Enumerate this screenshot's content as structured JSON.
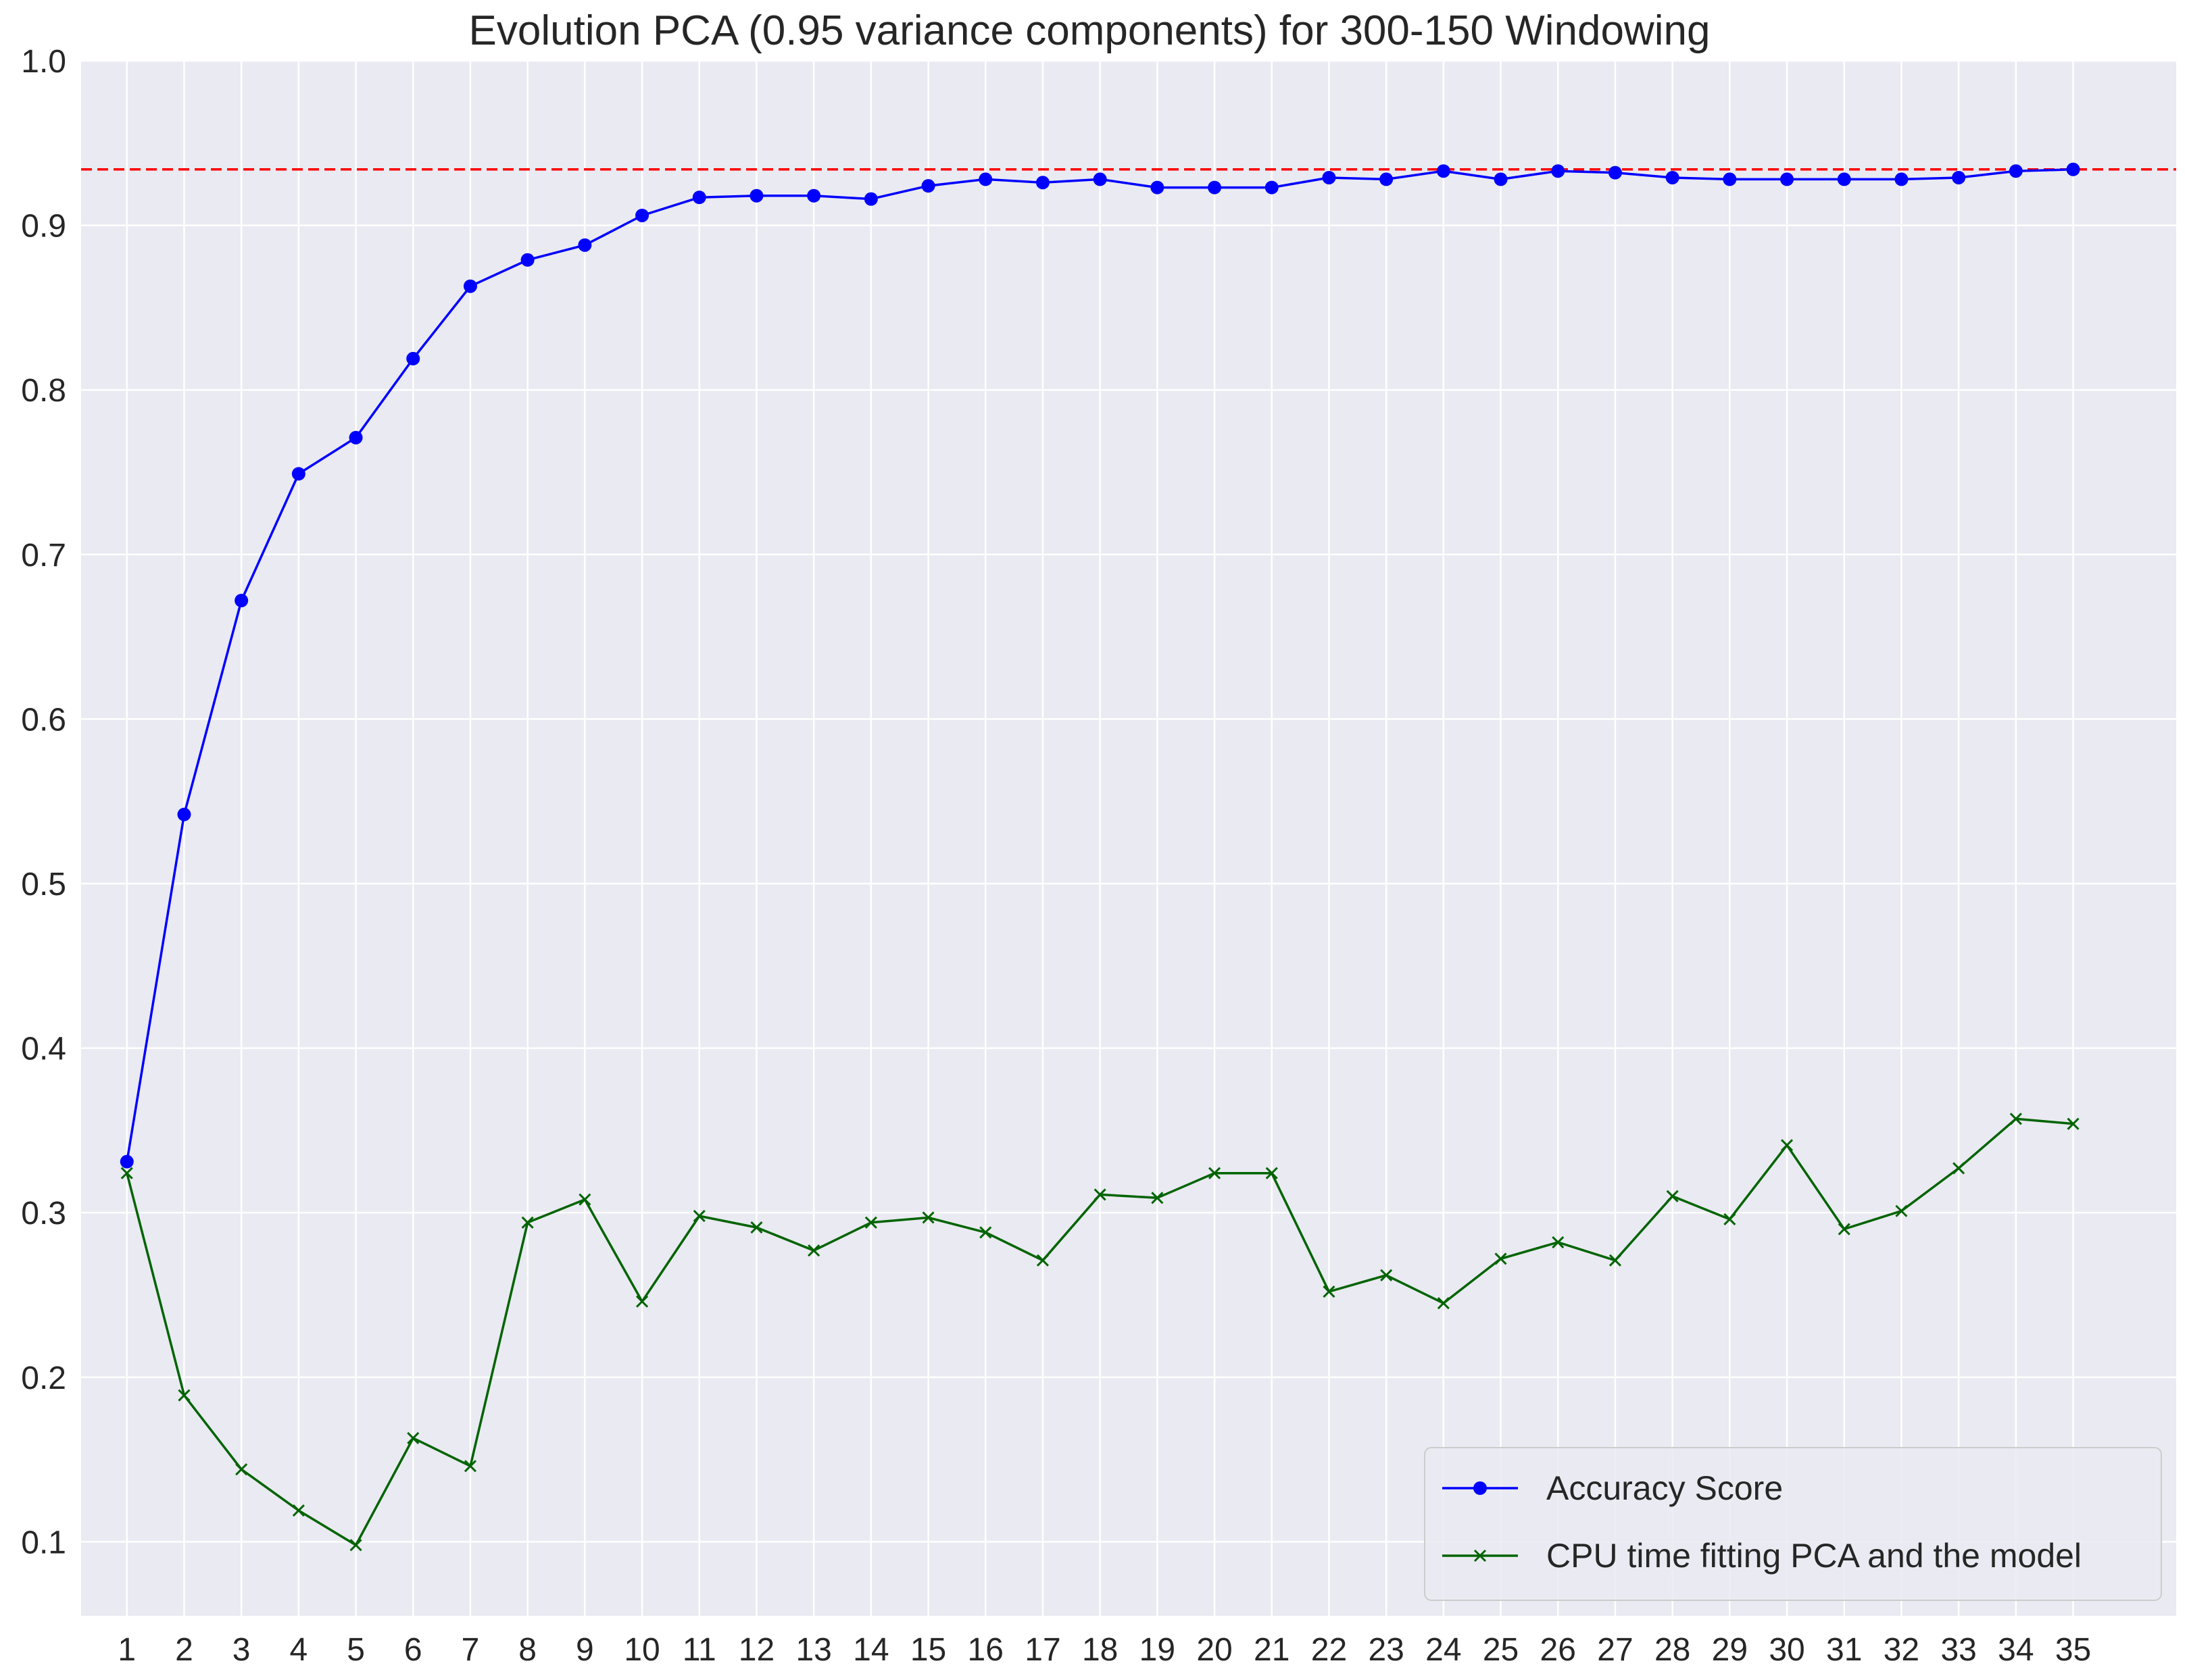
{
  "chart_data": {
    "type": "line",
    "title": "Evolution PCA (0.95 variance components) for 300-150 Windowing",
    "xlabel": "",
    "ylabel": "",
    "x": [
      1,
      2,
      3,
      4,
      5,
      6,
      7,
      8,
      9,
      10,
      11,
      12,
      13,
      14,
      15,
      16,
      17,
      18,
      19,
      20,
      21,
      22,
      23,
      24,
      25,
      26,
      27,
      28,
      29,
      30,
      31,
      32,
      33,
      34,
      35
    ],
    "x_ticks": [
      "1",
      "2",
      "3",
      "4",
      "5",
      "6",
      "7",
      "8",
      "9",
      "10",
      "11",
      "12",
      "13",
      "14",
      "15",
      "16",
      "17",
      "18",
      "19",
      "20",
      "21",
      "22",
      "23",
      "24",
      "25",
      "26",
      "27",
      "28",
      "29",
      "30",
      "31",
      "32",
      "33",
      "34",
      "35"
    ],
    "xlim": [
      0.2,
      36.8
    ],
    "ylim": [
      0.055,
      1.0
    ],
    "y_ticks": [
      "0.1",
      "0.2",
      "0.3",
      "0.4",
      "0.5",
      "0.6",
      "0.7",
      "0.8",
      "0.9",
      "1.0"
    ],
    "y_tick_values": [
      0.1,
      0.2,
      0.3,
      0.4,
      0.5,
      0.6,
      0.7,
      0.8,
      0.9,
      1.0
    ],
    "grid": true,
    "legend_position": "lower-right",
    "series": [
      {
        "name": "Accuracy Score",
        "color": "#0000ff",
        "marker": "circle",
        "values": [
          0.331,
          0.542,
          0.672,
          0.749,
          0.771,
          0.819,
          0.863,
          0.879,
          0.888,
          0.906,
          0.917,
          0.918,
          0.918,
          0.916,
          0.924,
          0.928,
          0.926,
          0.928,
          0.923,
          0.923,
          0.923,
          0.929,
          0.928,
          0.933,
          0.928,
          0.933,
          0.932,
          0.929,
          0.928,
          0.928,
          0.928,
          0.928,
          0.929,
          0.933,
          0.934
        ]
      },
      {
        "name": "CPU time fitting PCA and the model",
        "color": "#006400",
        "marker": "x",
        "values": [
          0.324,
          0.189,
          0.144,
          0.119,
          0.098,
          0.163,
          0.146,
          0.294,
          0.308,
          0.246,
          0.298,
          0.291,
          0.277,
          0.294,
          0.297,
          0.288,
          0.271,
          0.311,
          0.309,
          0.324,
          0.324,
          0.252,
          0.262,
          0.245,
          0.272,
          0.282,
          0.271,
          0.31,
          0.296,
          0.341,
          0.29,
          0.301,
          0.327,
          0.357,
          0.354
        ]
      }
    ],
    "reference_line": {
      "y": 0.934,
      "color": "#ff0000",
      "style": "dashed"
    }
  }
}
